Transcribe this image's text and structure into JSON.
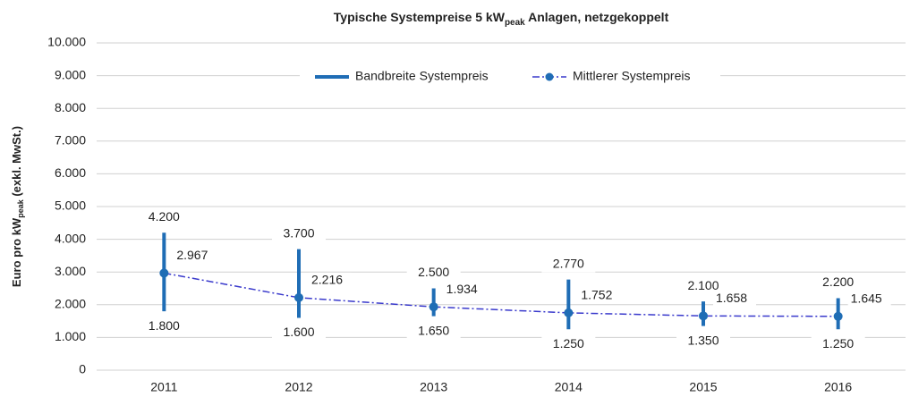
{
  "chart_data": {
    "type": "range-line",
    "title_parts": [
      "Typische Systempreise 5 kW",
      "peak",
      " Anlagen, netzgekoppelt"
    ],
    "ylabel_parts": [
      "Euro pro kW",
      "peak",
      "  (exkl. MwSt.)"
    ],
    "categories": [
      "2011",
      "2012",
      "2013",
      "2014",
      "2015",
      "2016"
    ],
    "series": [
      {
        "name": "Bandbreite Systempreis",
        "color": "#1f6db5",
        "high": [
          4200,
          3700,
          2500,
          2770,
          2100,
          2200
        ],
        "high_labels": [
          "4.200",
          "3.700",
          "2.500",
          "2.770",
          "2.100",
          "2.200"
        ],
        "low": [
          1800,
          1600,
          1650,
          1250,
          1350,
          1250
        ],
        "low_labels": [
          "1.800",
          "1.600",
          "1.650",
          "1.250",
          "1.350",
          "1.250"
        ]
      },
      {
        "name": "Mittlerer Systempreis",
        "color": "#1f6db5",
        "values": [
          2967,
          2216,
          1934,
          1752,
          1658,
          1645
        ],
        "value_labels": [
          "2.967",
          "2.216",
          "1.934",
          "1.752",
          "1.658",
          "1.645"
        ]
      }
    ],
    "ylim": [
      0,
      10000
    ],
    "yticks": [
      0,
      {
        "value": 1000,
        "label": "1.000"
      },
      {
        "value": 2000,
        "label": "2.000"
      },
      {
        "value": 3000,
        "label": "3.000"
      },
      {
        "value": 4000,
        "label": "4.000"
      },
      {
        "value": 5000,
        "label": "5.000"
      },
      {
        "value": 6000,
        "label": "6.000"
      },
      {
        "value": 7000,
        "label": "7.000"
      },
      {
        "value": 8000,
        "label": "8.000"
      },
      {
        "value": 9000,
        "label": "9.000"
      },
      {
        "value": 10000,
        "label": "10.000"
      }
    ],
    "grid": true,
    "legend": "top"
  }
}
